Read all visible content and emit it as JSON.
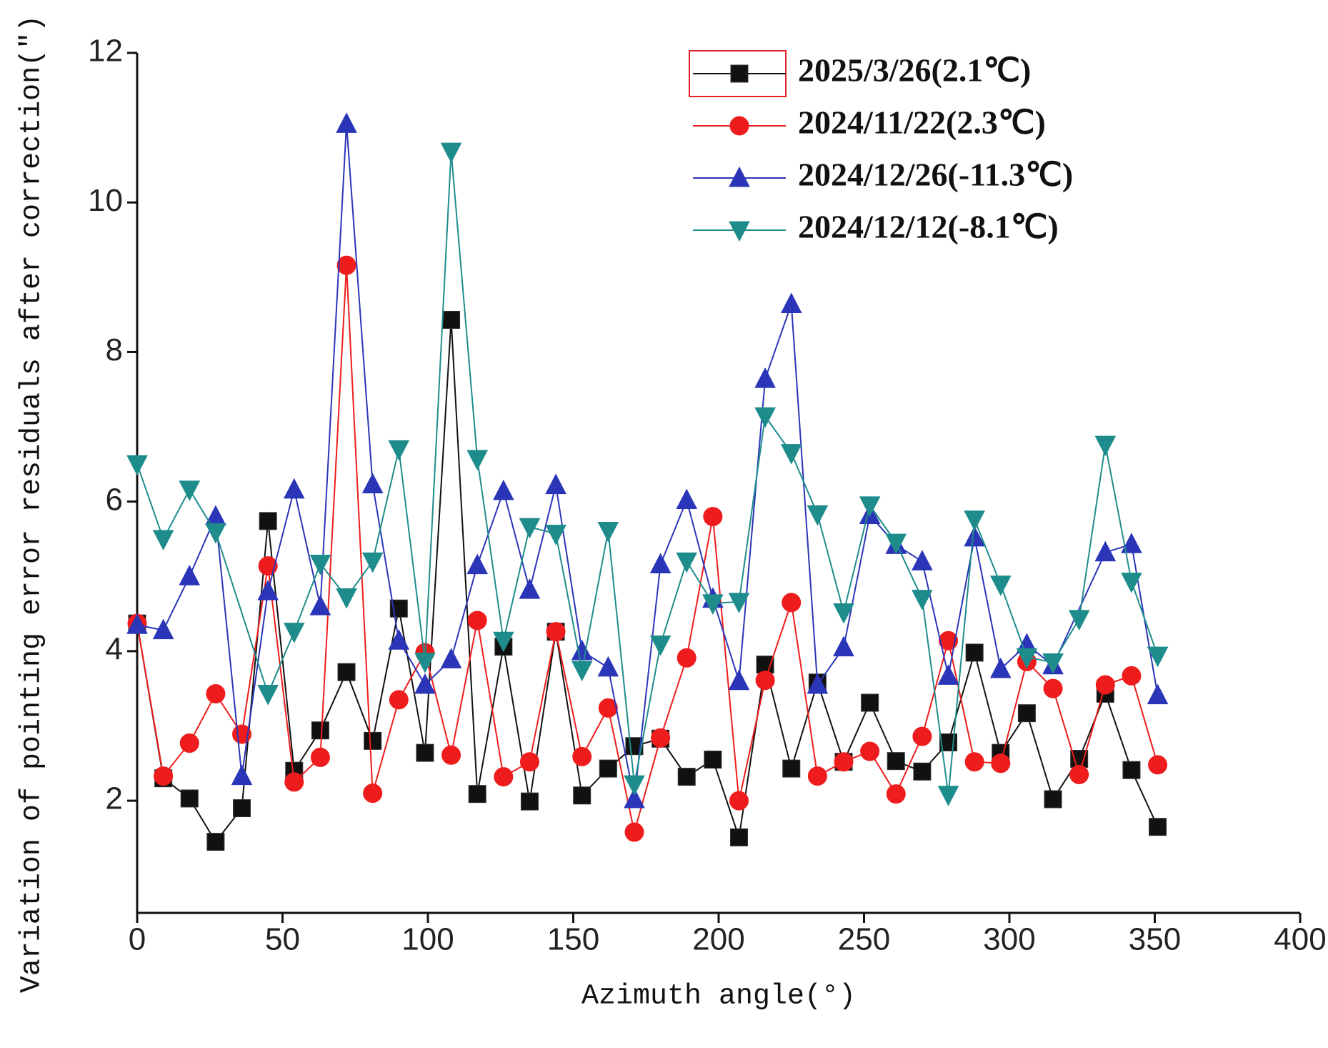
{
  "chart_data": {
    "type": "line",
    "xlabel": "Azimuth angle(°)",
    "ylabel": "Variation of pointing error residuals  after  correction(″)",
    "xlim": [
      0,
      400
    ],
    "xticks": [
      0,
      50,
      100,
      150,
      200,
      250,
      300,
      350,
      400
    ],
    "ylim": [
      0.5,
      12
    ],
    "yticks": [
      2,
      4,
      6,
      8,
      10,
      12
    ],
    "legend": "upper right",
    "series": [
      {
        "name": "2025/3/26(2.1℃)",
        "color": "#111111",
        "marker": "square",
        "x": [
          0,
          9,
          18,
          27,
          36,
          45,
          54,
          63,
          72,
          81,
          90,
          99,
          108,
          117,
          126,
          135,
          144,
          153,
          162,
          171,
          180,
          189,
          198,
          207,
          216,
          225,
          234,
          243,
          252,
          261,
          270,
          279,
          288,
          297,
          306,
          315,
          324,
          333,
          342,
          351
        ],
        "values": [
          4.37,
          2.3,
          2.03,
          1.45,
          1.9,
          5.74,
          2.4,
          2.94,
          3.72,
          2.8,
          4.57,
          2.64,
          8.43,
          2.09,
          4.06,
          1.99,
          4.26,
          2.07,
          2.43,
          2.73,
          2.83,
          2.32,
          2.55,
          1.51,
          3.82,
          2.43,
          3.58,
          2.52,
          3.31,
          2.53,
          2.39,
          2.78,
          3.98,
          2.64,
          3.17,
          2.02,
          2.56,
          3.43,
          2.41,
          1.65
        ]
      },
      {
        "name": "2024/11/22(2.3℃)",
        "color": "#ee1c1c",
        "marker": "circle",
        "x": [
          0,
          9,
          18,
          27,
          36,
          45,
          54,
          63,
          72,
          81,
          90,
          99,
          108,
          117,
          126,
          135,
          144,
          153,
          162,
          171,
          180,
          189,
          198,
          207,
          216,
          225,
          234,
          243,
          252,
          261,
          270,
          279,
          288,
          297,
          306,
          315,
          324,
          333,
          342,
          351
        ],
        "values": [
          4.37,
          2.33,
          2.77,
          3.43,
          2.89,
          5.14,
          2.25,
          2.58,
          9.16,
          2.1,
          3.35,
          3.98,
          2.61,
          4.41,
          2.32,
          2.52,
          4.26,
          2.59,
          3.24,
          1.58,
          2.84,
          3.91,
          5.8,
          2.0,
          3.61,
          4.65,
          2.33,
          2.52,
          2.66,
          2.09,
          2.86,
          4.14,
          2.52,
          2.5,
          3.86,
          3.5,
          2.35,
          3.55,
          3.67,
          2.48
        ]
      },
      {
        "name": "2024/12/26(-11.3℃)",
        "color": "#2b35b8",
        "marker": "triangle-up",
        "x": [
          0,
          9,
          18,
          27,
          36,
          45,
          54,
          63,
          72,
          81,
          90,
          99,
          108,
          117,
          126,
          135,
          144,
          153,
          162,
          171,
          180,
          189,
          198,
          207,
          216,
          225,
          234,
          243,
          252,
          261,
          270,
          279,
          288,
          297,
          306,
          315,
          333,
          342,
          351
        ],
        "values": [
          4.35,
          4.28,
          5.0,
          5.8,
          2.33,
          4.8,
          6.16,
          4.6,
          11.05,
          6.23,
          4.14,
          3.55,
          3.89,
          5.15,
          6.14,
          4.82,
          6.22,
          4.0,
          3.78,
          2.02,
          5.16,
          6.02,
          4.7,
          3.6,
          7.64,
          8.64,
          3.55,
          4.05,
          5.82,
          5.42,
          5.2,
          3.67,
          5.52,
          3.76,
          4.09,
          3.81,
          5.32,
          5.43,
          3.41
        ]
      },
      {
        "name": "2024/12/12(-8.1℃)",
        "color": "#1f8c8c",
        "marker": "triangle-down",
        "x": [
          0,
          9,
          18,
          27,
          45,
          54,
          63,
          72,
          81,
          90,
          99,
          108,
          117,
          126,
          135,
          144,
          153,
          162,
          171,
          180,
          189,
          198,
          207,
          216,
          225,
          234,
          243,
          252,
          261,
          270,
          279,
          288,
          297,
          306,
          315,
          324,
          333,
          342,
          351
        ],
        "values": [
          6.5,
          5.5,
          6.16,
          5.59,
          3.43,
          4.26,
          5.17,
          4.72,
          5.2,
          6.7,
          3.86,
          10.68,
          6.57,
          4.14,
          5.66,
          5.57,
          3.75,
          5.61,
          2.22,
          4.09,
          5.2,
          4.64,
          4.66,
          7.14,
          6.65,
          5.83,
          4.52,
          5.95,
          5.45,
          4.7,
          2.08,
          5.76,
          4.89,
          3.92,
          3.85,
          4.43,
          6.76,
          4.93,
          3.94
        ]
      }
    ]
  }
}
